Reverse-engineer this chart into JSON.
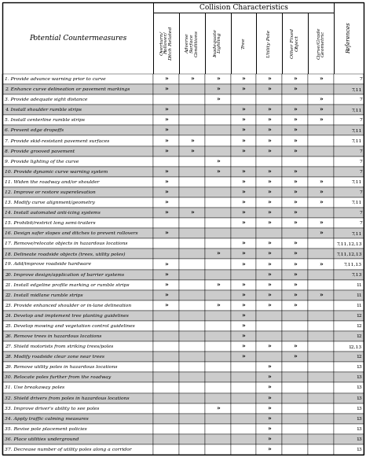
{
  "col_header_main": "Collision Characteristics",
  "col_headers": [
    "Overturn/\nRollover/\nDitch Related",
    "Adverse\nSurface\nConditions",
    "Inadequate\nLighting",
    "Tree",
    "Utility Pole",
    "Other Fixed\nObject",
    "Curve/Grade\nGeometric",
    "References"
  ],
  "row_labels": [
    "1. Provide advance warning prior to curve",
    "2. Enhance curve delineation or pavement markings",
    "3. Provide adequate sight distance",
    "4. Install shoulder rumble strips",
    "5. Install centerline rumble strips",
    "6. Prevent edge dropoffs",
    "7. Provide skid-resistant pavement surfaces",
    "8. Provide grooved pavement",
    "9. Provide lighting of the curve",
    "10. Provide dynamic curve warning system",
    "11. Widen the roadway and/or shoulder",
    "12. Improve or restore superelevation",
    "13. Modify curve alignment/geometry",
    "14. Install automated anti-icing systems",
    "15. Prohibit/restrict long semi-trailers",
    "16. Design safer slopes and ditches to prevent rollovers",
    "17. Remove/relocate objects in hazardous locations",
    "18. Delineate roadside objects (trees, utility poles)",
    "19. Add/improve roadside hardware",
    "20. Improve design/application of barrier systems",
    "21. Install edgeline profile marking or rumble strips",
    "22. Install midlane rumble strips",
    "23. Provide enhanced shoulder or in-lane delineation",
    "24. Develop and implement tree planting guidelines",
    "25. Develop mowing and vegetation control guidelines",
    "26. Remove trees in hazardous locations",
    "27. Shield motorists from striking trees/poles",
    "28. Modify roadside clear zone near trees",
    "29. Remove utility poles in hazardous locations",
    "30. Relocate poles further from the roadway",
    "31. Use breakaway poles",
    "32. Shield drivers from poles in hazardous locations",
    "33. Improve driver's ability to see poles",
    "34. Apply traffic calming measures",
    "35. Revise pole placement policies",
    "36. Place utilities underground",
    "37. Decrease number of utility poles along a corridor"
  ],
  "dots": [
    [
      1,
      1,
      1,
      1,
      1,
      1,
      1
    ],
    [
      1,
      0,
      1,
      1,
      1,
      1,
      0
    ],
    [
      0,
      0,
      1,
      0,
      0,
      0,
      1
    ],
    [
      1,
      0,
      0,
      1,
      1,
      1,
      1
    ],
    [
      1,
      0,
      0,
      1,
      1,
      1,
      1
    ],
    [
      1,
      0,
      0,
      1,
      1,
      1,
      0
    ],
    [
      1,
      1,
      0,
      1,
      1,
      1,
      0
    ],
    [
      1,
      1,
      0,
      1,
      1,
      1,
      0
    ],
    [
      0,
      0,
      1,
      0,
      0,
      0,
      0
    ],
    [
      1,
      0,
      1,
      1,
      1,
      1,
      0
    ],
    [
      1,
      0,
      0,
      1,
      1,
      1,
      1
    ],
    [
      1,
      0,
      0,
      1,
      1,
      1,
      1
    ],
    [
      1,
      0,
      0,
      1,
      1,
      1,
      1
    ],
    [
      1,
      1,
      0,
      1,
      1,
      1,
      0
    ],
    [
      0,
      0,
      0,
      1,
      1,
      1,
      1
    ],
    [
      1,
      0,
      0,
      0,
      0,
      0,
      1
    ],
    [
      0,
      0,
      0,
      1,
      1,
      1,
      0
    ],
    [
      0,
      0,
      1,
      1,
      1,
      1,
      0
    ],
    [
      1,
      0,
      0,
      1,
      1,
      1,
      1
    ],
    [
      1,
      0,
      0,
      0,
      1,
      1,
      0
    ],
    [
      1,
      0,
      1,
      1,
      1,
      1,
      0
    ],
    [
      1,
      0,
      0,
      1,
      1,
      1,
      1
    ],
    [
      1,
      0,
      1,
      1,
      1,
      1,
      0
    ],
    [
      0,
      0,
      0,
      1,
      0,
      0,
      0
    ],
    [
      0,
      0,
      0,
      1,
      0,
      0,
      0
    ],
    [
      0,
      0,
      0,
      1,
      0,
      0,
      0
    ],
    [
      0,
      0,
      0,
      1,
      1,
      1,
      0
    ],
    [
      0,
      0,
      0,
      1,
      0,
      1,
      0
    ],
    [
      0,
      0,
      0,
      0,
      1,
      0,
      0
    ],
    [
      0,
      0,
      0,
      0,
      1,
      0,
      0
    ],
    [
      0,
      0,
      0,
      0,
      1,
      0,
      0
    ],
    [
      0,
      0,
      0,
      0,
      1,
      0,
      0
    ],
    [
      0,
      0,
      1,
      0,
      1,
      0,
      0
    ],
    [
      0,
      0,
      0,
      0,
      1,
      0,
      0
    ],
    [
      0,
      0,
      0,
      0,
      1,
      0,
      0
    ],
    [
      0,
      0,
      0,
      0,
      1,
      0,
      0
    ],
    [
      0,
      0,
      0,
      0,
      1,
      0,
      0
    ]
  ],
  "references": [
    "7",
    "7,11",
    "7",
    "7,11",
    "7",
    "7,11",
    "7,11",
    "7",
    "7",
    "7",
    "7,11",
    "7",
    "7,11",
    "7",
    "7",
    "7,11",
    "7,11,12,13",
    "7,11,12,13",
    "7,11,13",
    "7,13",
    "11",
    "11",
    "11",
    "12",
    "12",
    "12",
    "12,13",
    "12",
    "13",
    "13",
    "13",
    "13",
    "13",
    "13",
    "13",
    "13",
    "13"
  ],
  "row_alt_colors": [
    "#ffffff",
    "#cccccc"
  ]
}
